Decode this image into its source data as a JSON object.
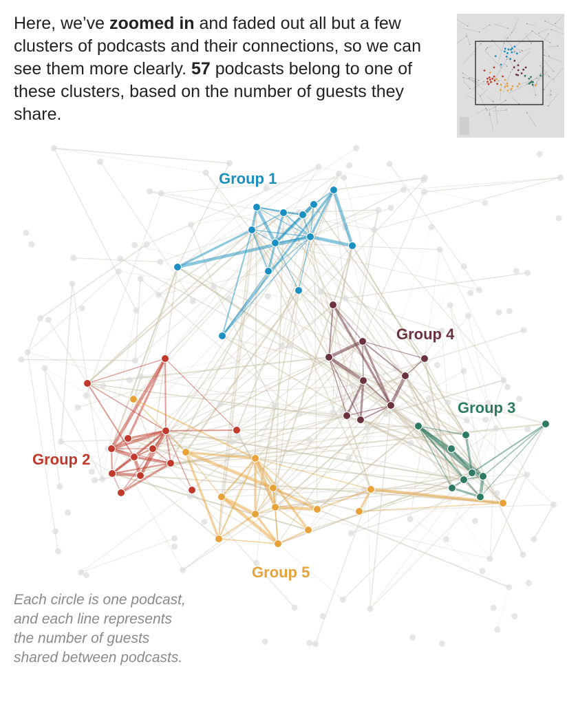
{
  "intro": {
    "part1": "Here, we’ve ",
    "bold1": "zoomed in",
    "part2": " and faded out all but a few clusters of podcasts and their connections, so we can see them more clearly. ",
    "bold2": "57",
    "part3": " podcasts belong to one of these clusters, based on the number of guests they share."
  },
  "groups": [
    {
      "label": "Group 1",
      "color": "#1a8fc1"
    },
    {
      "label": "Group 2",
      "color": "#c0392b"
    },
    {
      "label": "Group 3",
      "color": "#2e7a62"
    },
    {
      "label": "Group 4",
      "color": "#6b3240"
    },
    {
      "label": "Group 5",
      "color": "#e8a23a"
    }
  ],
  "caption": "Each circle is one podcast, and each line represents the number of guests shared between podcasts.",
  "colors": {
    "faded_node": "#dcdcdc",
    "faded_edge": "#cfc9bb",
    "minimap_bg": "#dedede"
  }
}
